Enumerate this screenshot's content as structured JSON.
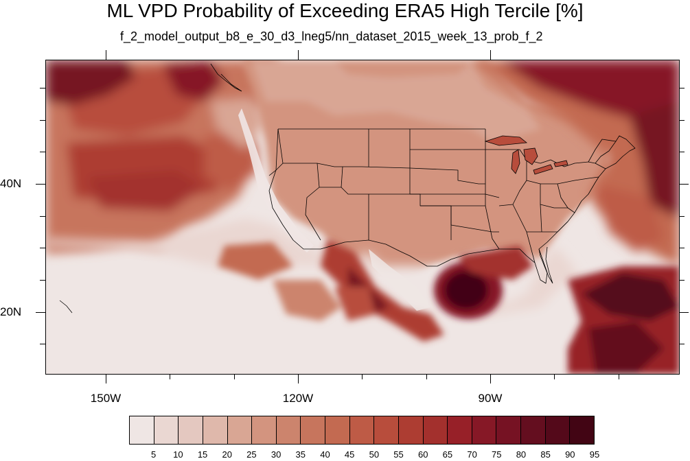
{
  "title": "ML VPD Probability of Exceeding ERA5 High Tercile [%]",
  "subtitle": "f_2_model_output_b8_e_30_d3_lneg5/nn_dataset_2015_week_13_prob_f_2",
  "map": {
    "projection": "lat-lon",
    "lon_labels": [
      "150W",
      "120W",
      "90W"
    ],
    "lat_labels": [
      "40N",
      "20N"
    ],
    "features": [
      "US state boundaries",
      "coastlines",
      "Great Lakes"
    ]
  },
  "colorbar": {
    "labels": [
      "5",
      "10",
      "15",
      "20",
      "25",
      "30",
      "35",
      "40",
      "45",
      "50",
      "55",
      "60",
      "65",
      "70",
      "75",
      "80",
      "85",
      "90",
      "95"
    ],
    "colors": [
      "#efe6e4",
      "#ead7d2",
      "#e4c8c0",
      "#dfb8ab",
      "#d9a694",
      "#d3947f",
      "#cc846d",
      "#c7755d",
      "#c36a51",
      "#be5b46",
      "#b84d3c",
      "#ad3d32",
      "#a3302d",
      "#972028",
      "#861826",
      "#761223",
      "#640e1f",
      "#54091a",
      "#420514"
    ]
  }
}
